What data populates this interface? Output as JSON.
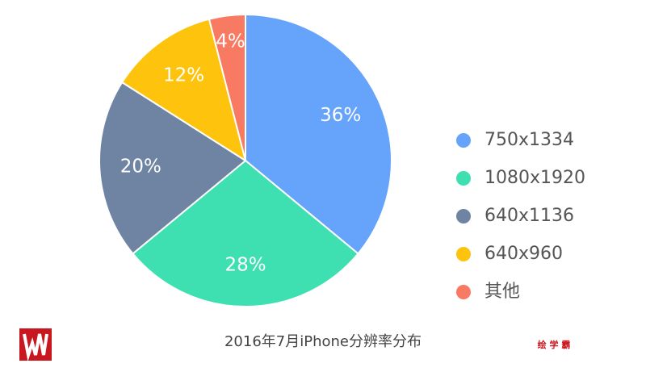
{
  "chart_data": {
    "type": "pie",
    "title": "2016年7月iPhone分辨率分布",
    "categories": [
      "750x1334",
      "1080x1920",
      "640x1136",
      "640x960",
      "其他"
    ],
    "values": [
      36,
      28,
      20,
      12,
      4
    ],
    "value_labels": [
      "36%",
      "28%",
      "20%",
      "12%",
      "4%"
    ],
    "colors": [
      "#66a3fb",
      "#3ee0b1",
      "#6f84a2",
      "#fec30d",
      "#f87a63"
    ],
    "legend": "right"
  },
  "watermark": "绘 学 霸"
}
